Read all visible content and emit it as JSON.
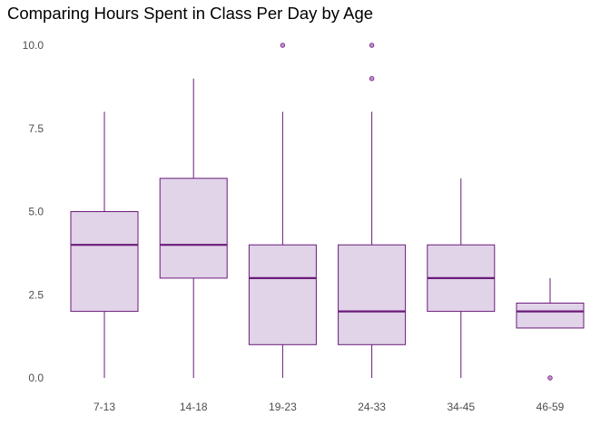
{
  "chart_data": {
    "type": "box",
    "title": "Comparing Hours Spent in Class Per Day by Age",
    "xlabel": "",
    "ylabel": "",
    "ylim": [
      0,
      10
    ],
    "yticks": [
      "0.0",
      "2.5",
      "5.0",
      "7.5",
      "10.0"
    ],
    "grid": false,
    "legend": "none",
    "colors": {
      "box_fill": "#e1d3e8",
      "box_stroke": "#6a1b7a",
      "median": "#6a1b7a",
      "outlier_fill": "#c58fd6",
      "outlier_stroke": "#6a1b7a"
    },
    "categories": [
      "7-13",
      "14-18",
      "19-23",
      "24-33",
      "34-45",
      "46-59"
    ],
    "boxes": [
      {
        "category": "7-13",
        "whisker_low": 0,
        "q1": 2,
        "median": 4,
        "q3": 5,
        "whisker_high": 8,
        "outliers": []
      },
      {
        "category": "14-18",
        "whisker_low": 0,
        "q1": 3,
        "median": 4,
        "q3": 6,
        "whisker_high": 9,
        "outliers": []
      },
      {
        "category": "19-23",
        "whisker_low": 0,
        "q1": 1,
        "median": 3,
        "q3": 4,
        "whisker_high": 8,
        "outliers": [
          10
        ]
      },
      {
        "category": "24-33",
        "whisker_low": 0,
        "q1": 1,
        "median": 2,
        "q3": 4,
        "whisker_high": 8,
        "outliers": [
          9,
          10
        ]
      },
      {
        "category": "34-45",
        "whisker_low": 0,
        "q1": 2,
        "median": 3,
        "q3": 4,
        "whisker_high": 6,
        "outliers": []
      },
      {
        "category": "46-59",
        "whisker_low": 1.5,
        "q1": 1.5,
        "median": 2,
        "q3": 2.25,
        "whisker_high": 3,
        "outliers": [
          0
        ]
      }
    ]
  }
}
